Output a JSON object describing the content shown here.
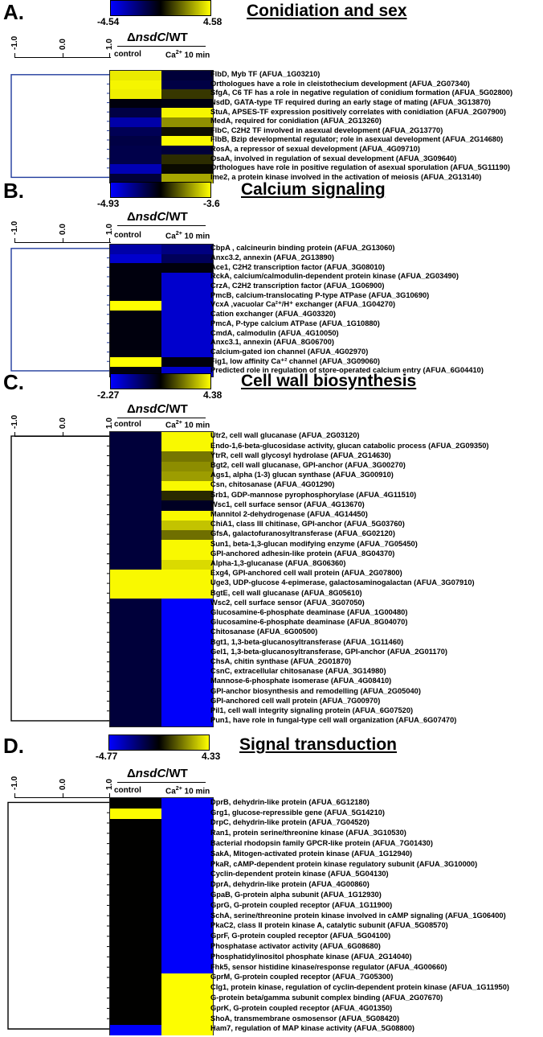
{
  "axis_ticks": [
    "-1.0",
    "0.0",
    "1.0"
  ],
  "comparison": {
    "delta": "Δ",
    "gene": "nsdC",
    "rest": "/WT"
  },
  "columns": {
    "control": "control",
    "ca_prefix": "Ca",
    "ca_sup": "2+",
    "ca_suffix": " 10 min"
  },
  "colors": {
    "low": "#0000ff",
    "mid": "#000000",
    "high": "#ffff00",
    "dendrogram": "#1f3a9c",
    "dendrogram_dark": "#000000"
  },
  "panels": [
    {
      "letter": "A.",
      "title": "Conidiation and sex",
      "scale_min": "-4.54",
      "scale_max": "4.58",
      "scale_min_value": -4.54,
      "scale_max_value": 4.58,
      "genes": [
        {
          "label": "FlbD, Myb TF (AFUA_1G03210)",
          "values": [
            4.2,
            -1.0
          ]
        },
        {
          "label": "Orthologues have a role in cleistothecium development (AFUA_2G07340)",
          "values": [
            4.4,
            -1.2
          ]
        },
        {
          "label": "SfgA, C6 TF has a role in negative regulation of conidium formation (AFUA_5G02800)",
          "values": [
            4.3,
            1.0
          ]
        },
        {
          "label": "NsdD, GATA-type TF required during an early stage of mating (AFUA_3G13870)",
          "values": [
            -0.2,
            -0.3
          ]
        },
        {
          "label": "StuA, APSES-TF expression positively correlates with conidiation (AFUA_2G07900)",
          "values": [
            -1.2,
            4.4
          ]
        },
        {
          "label": "MedA, required for conidiation (AFUA_2G13260)",
          "values": [
            -3.0,
            2.6
          ]
        },
        {
          "label": "FlbC, C2H2 TF involved in asexual development (AFUA_2G13770)",
          "values": [
            -1.5,
            0.3
          ]
        },
        {
          "label": "FlbB, Bzip developmental regulator; role in asexual development (AFUA_2G14680)",
          "values": [
            -1.2,
            4.5
          ]
        },
        {
          "label": "RosA, a repressor of sexual development (AFUA_4G09710)",
          "values": [
            -1.3,
            -1.0
          ]
        },
        {
          "label": "OsaA, involved in regulation of sexual development (AFUA_3G09640)",
          "values": [
            -1.3,
            0.8
          ]
        },
        {
          "label": "Orthologues have role in positive regulation of asexual sporulation (AFUA_5G11190)",
          "values": [
            -3.2,
            0.2
          ]
        },
        {
          "label": "Ime2, a protein kinase involved in the activation of meiosis (AFUA_2G13140)",
          "values": [
            -1.0,
            3.0
          ]
        }
      ]
    },
    {
      "letter": "B.",
      "title": "Calcium signaling",
      "scale_min": "-4.93",
      "scale_max": "-3.6",
      "scale_min_value": -4.93,
      "scale_max_value": -3.6,
      "genes": [
        {
          "label": "CbpA , calcineurin binding protein (AFUA_2G13060)",
          "values": [
            -4.7,
            -4.6
          ]
        },
        {
          "label": "Anxc3.2, annexin (AFUA_2G13890)",
          "values": [
            -4.8,
            -4.5
          ]
        },
        {
          "label": "Ace1, C2H2 transcription factor (AFUA_3G08010)",
          "values": [
            -4.3,
            -4.3
          ]
        },
        {
          "label": "RckA, calcium/calmodulin-dependent protein kinase (AFUA_2G03490)",
          "values": [
            -4.3,
            -4.8
          ]
        },
        {
          "label": "CrzA, C2H2 transcription factor (AFUA_1G06900)",
          "values": [
            -4.3,
            -4.8
          ]
        },
        {
          "label": "PmcB, calcium-translocating P-type ATPase (AFUA_3G10690)",
          "values": [
            -4.3,
            -4.8
          ]
        },
        {
          "label": "VcxA ,vacuolar Ca²⁺/H⁺ exchanger (AFUA_1G04270)",
          "values": [
            -3.6,
            -4.8
          ]
        },
        {
          "label": "Cation exchanger (AFUA_4G03320)",
          "values": [
            -4.3,
            -4.8
          ]
        },
        {
          "label": "PmcA, P-type calcium ATPase (AFUA_1G10880)",
          "values": [
            -4.3,
            -4.8
          ]
        },
        {
          "label": "CmdA, calmodulin (AFUA_4G10050)",
          "values": [
            -4.3,
            -4.8
          ]
        },
        {
          "label": "Anxc3.1, annexin (AFUA_8G06700)",
          "values": [
            -4.3,
            -4.8
          ]
        },
        {
          "label": "Calcium-gated ion channel (AFUA_4G02970)",
          "values": [
            -4.3,
            -4.8
          ]
        },
        {
          "label": "Fig1, low affinity Ca⁺² channel (AFUA_3G09060)",
          "values": [
            -3.6,
            -4.3
          ]
        },
        {
          "label": "Predicted role in regulation of store-operated calcium entry (AFUA_6G04410)",
          "values": [
            -4.3,
            -4.8
          ]
        }
      ]
    },
    {
      "letter": "C.",
      "title": "Cell wall biosynthesis",
      "scale_min": "-2.27",
      "scale_max": "4.38",
      "scale_min_value": -2.27,
      "scale_max_value": 4.38,
      "genes": [
        {
          "label": "Utr2, cell wall glucanase (AFUA_2G03120)",
          "values": [
            0.3,
            4.3
          ]
        },
        {
          "label": "Endo-1,6-beta-glucosidase activity, glucan catabolic process (AFUA_2G09350)",
          "values": [
            0.3,
            4.3
          ]
        },
        {
          "label": "YtrR, cell wall glycosyl hydrolase (AFUA_2G14630)",
          "values": [
            0.3,
            2.6
          ]
        },
        {
          "label": "Bgt2, cell wall glucanase, GPI-anchor (AFUA_3G00270)",
          "values": [
            0.3,
            2.9
          ]
        },
        {
          "label": "Ags1, alpha (1-3) glucan synthase (AFUA_3G00910)",
          "values": [
            0.3,
            3.1
          ]
        },
        {
          "label": "Csn, chitosanase (AFUA_4G01290)",
          "values": [
            0.3,
            4.3
          ]
        },
        {
          "label": "Srb1, GDP-mannose pyrophosphorylase (AFUA_4G11510)",
          "values": [
            0.3,
            1.6
          ]
        },
        {
          "label": "Wsc1, cell surface sensor (AFUA_4G13670)",
          "values": [
            0.3,
            0.6
          ]
        },
        {
          "label": "Mannitol 2-dehydrogenase (AFUA_4G14450)",
          "values": [
            0.3,
            4.3
          ]
        },
        {
          "label": "ChiA1, class III chitinase, GPI-anchor (AFUA_5G03760)",
          "values": [
            0.3,
            3.6
          ]
        },
        {
          "label": "GfsA, galactofuranosyltransferase (AFUA_6G02120)",
          "values": [
            0.3,
            2.5
          ]
        },
        {
          "label": "Sun1, beta-1,3-glucan modifying enzyme (AFUA_7G05450)",
          "values": [
            0.3,
            4.3
          ]
        },
        {
          "label": "GPI-anchored adhesin-like protein (AFUA_8G04370)",
          "values": [
            0.3,
            4.3
          ]
        },
        {
          "label": "Alpha-1,3-glucanase (AFUA_8G06360)",
          "values": [
            0.3,
            3.9
          ]
        },
        {
          "label": "Exg4, GPI-anchored cell wall protein (AFUA_2G07800)",
          "values": [
            4.3,
            4.3
          ]
        },
        {
          "label": "Uge3, UDP-glucose 4-epimerase, galactosaminogalactan (AFUA_3G07910)",
          "values": [
            4.3,
            4.3
          ]
        },
        {
          "label": "BgtE, cell wall glucanase (AFUA_8G05610)",
          "values": [
            4.3,
            4.3
          ]
        },
        {
          "label": "Wsc2, cell surface sensor (AFUA_3G07050)",
          "values": [
            0.3,
            -2.2
          ]
        },
        {
          "label": "Glucosamine-6-phosphate deaminase (AFUA_1G00480)",
          "values": [
            0.3,
            -2.2
          ]
        },
        {
          "label": "Glucosamine-6-phosphate deaminase (AFUA_8G04070)",
          "values": [
            0.3,
            -2.2
          ]
        },
        {
          "label": "Chitosanase (AFUA_6G00500)",
          "values": [
            0.3,
            -2.2
          ]
        },
        {
          "label": "Bgt1, 1,3-beta-glucanosyltransferase (AFUA_1G11460)",
          "values": [
            0.3,
            -2.2
          ]
        },
        {
          "label": "Gel1, 1,3-beta-glucanosyltransferase, GPI-anchor (AFUA_2G01170)",
          "values": [
            0.3,
            -2.2
          ]
        },
        {
          "label": "ChsA, chitin synthase (AFUA_2G01870)",
          "values": [
            0.3,
            -2.2
          ]
        },
        {
          "label": "CsnC, extracellular chitosanase (AFUA_3G14980)",
          "values": [
            0.3,
            -2.2
          ]
        },
        {
          "label": "Mannose-6-phosphate isomerase (AFUA_4G08410)",
          "values": [
            0.3,
            -2.2
          ]
        },
        {
          "label": "GPI-anchor biosynthesis and remodelling (AFUA_2G05040)",
          "values": [
            0.3,
            -2.2
          ]
        },
        {
          "label": "GPI-anchored cell wall protein (AFUA_7G00970)",
          "values": [
            0.3,
            -2.2
          ]
        },
        {
          "label": "Pil1, cell wall integrity signaling protein (AFUA_6G07520)",
          "values": [
            0.3,
            -2.2
          ]
        },
        {
          "label": "Pun1, have role in fungal-type cell wall organization (AFUA_6G07470)",
          "values": [
            0.3,
            -2.2
          ]
        }
      ]
    },
    {
      "letter": "D.",
      "title": "Signal transduction",
      "scale_min": "-4.77",
      "scale_max": "4.33",
      "scale_min_value": -4.77,
      "scale_max_value": 4.33,
      "genes": [
        {
          "label": "DprB, dehydrin-like protein (AFUA_6G12180)",
          "values": [
            -0.2,
            -4.7
          ]
        },
        {
          "label": "Grg1, glucose-repressible gene (AFUA_5G14210)",
          "values": [
            4.3,
            -4.7
          ]
        },
        {
          "label": "DrpC, dehydrin-like protein (AFUA_7G04520)",
          "values": [
            -0.2,
            -4.7
          ]
        },
        {
          "label": "Ran1, protein serine/threonine kinase (AFUA_3G10530)",
          "values": [
            -0.2,
            -4.7
          ]
        },
        {
          "label": "Bacterial rhodopsin family GPCR-like protein (AFUA_7G01430)",
          "values": [
            -0.2,
            -4.7
          ]
        },
        {
          "label": "SakA, Mitogen-activated protein kinase (AFUA_1G12940)",
          "values": [
            -0.2,
            -4.7
          ]
        },
        {
          "label": "PkaR, cAMP-dependent protein kinase regulatory subunit (AFUA_3G10000)",
          "values": [
            -0.2,
            -4.7
          ]
        },
        {
          "label": "Cyclin-dependent protein kinase (AFUA_5G04130)",
          "values": [
            -0.2,
            -4.7
          ]
        },
        {
          "label": "DprA, dehydrin-like protein (AFUA_4G00860)",
          "values": [
            -0.2,
            -4.7
          ]
        },
        {
          "label": "GpaB, G-protein alpha subunit (AFUA_1G12930)",
          "values": [
            -0.2,
            -4.7
          ]
        },
        {
          "label": "GprG, G-protein coupled receptor (AFUA_1G11900)",
          "values": [
            -0.2,
            -4.7
          ]
        },
        {
          "label": "SchA, serine/threonine protein kinase involved in cAMP signaling (AFUA_1G06400)",
          "values": [
            -0.2,
            -4.7
          ]
        },
        {
          "label": "PkaC2, class II protein kinase A, catalytic subunit (AFUA_5G08570)",
          "values": [
            -0.2,
            -4.7
          ]
        },
        {
          "label": "GprF, G-protein coupled receptor (AFUA_5G04100)",
          "values": [
            -0.2,
            -4.7
          ]
        },
        {
          "label": "Phosphatase activator activity (AFUA_6G08680)",
          "values": [
            -0.2,
            -4.7
          ]
        },
        {
          "label": "Phosphatidylinositol phosphate kinase (AFUA_2G14040)",
          "values": [
            -0.2,
            -4.7
          ]
        },
        {
          "label": "Fhk5, sensor histidine kinase/response regulator (AFUA_4G00660)",
          "values": [
            -0.2,
            -4.7
          ]
        },
        {
          "label": "GprM, G-protein coupled receptor (AFUA_7G05300)",
          "values": [
            -0.2,
            4.3
          ]
        },
        {
          "label": "Clg1, protein kinase, regulation of cyclin-dependent protein kinase (AFUA_1G11950)",
          "values": [
            -0.2,
            4.3
          ]
        },
        {
          "label": "G-protein beta/gamma subunit complex binding (AFUA_2G07670)",
          "values": [
            -0.2,
            4.3
          ]
        },
        {
          "label": "GprK, G-protein coupled receptor (AFUA_4G01350)",
          "values": [
            -0.2,
            4.3
          ]
        },
        {
          "label": "ShoA, transmembrane osmosensor (AFUA_5G08420)",
          "values": [
            -0.2,
            4.3
          ]
        },
        {
          "label": "Ham7, regulation of MAP kinase activity (AFUA_5G08800)",
          "values": [
            -4.7,
            4.3
          ]
        }
      ]
    }
  ]
}
